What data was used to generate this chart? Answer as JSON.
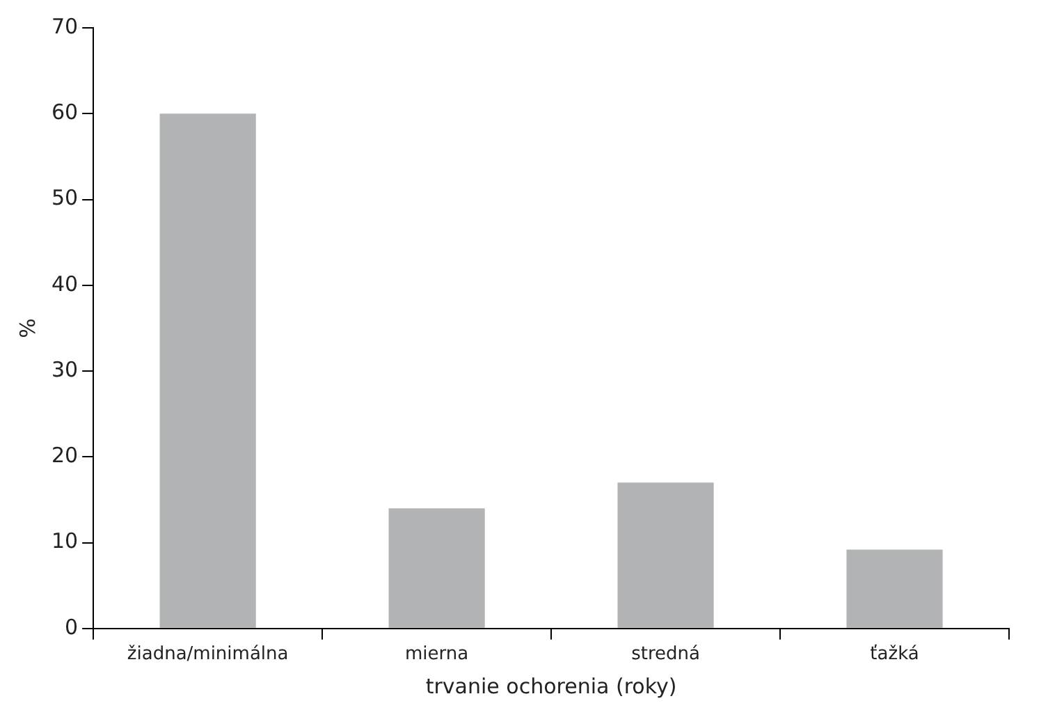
{
  "chart_data": {
    "type": "bar",
    "xlabel": "trvanie ochorenia (roky)",
    "ylabel": "%",
    "categories": [
      "žiadna/minimálna",
      "mierna",
      "stredná",
      "ťažká"
    ],
    "values": [
      60,
      14,
      17,
      9.2
    ],
    "color": "#b1b3b4",
    "ylim": [
      0,
      70
    ],
    "yticks": [
      0,
      10,
      20,
      30,
      40,
      50,
      60,
      70
    ],
    "grid": false,
    "legend": false
  }
}
